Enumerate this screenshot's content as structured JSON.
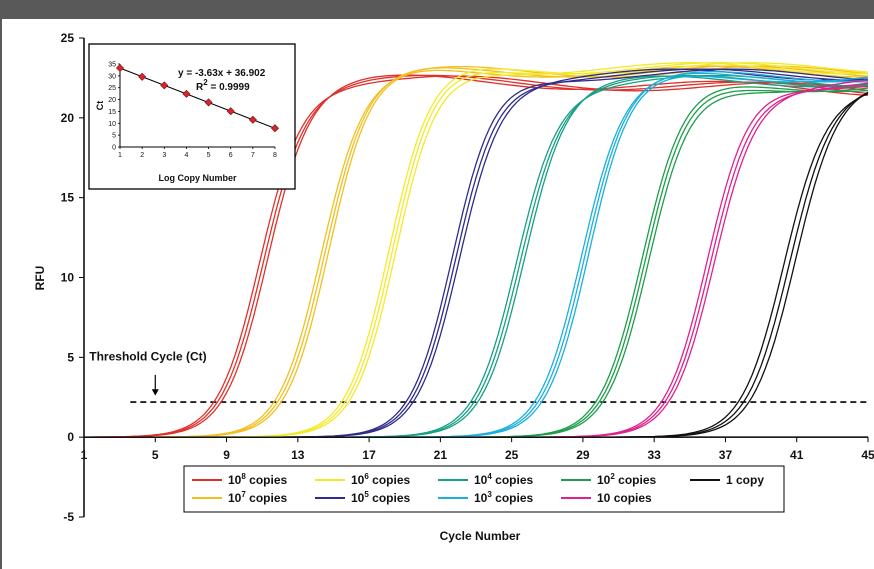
{
  "chart_data": [
    {
      "type": "line",
      "xlabel": "Cycle Number",
      "ylabel": "RFU",
      "xlim": [
        1,
        45
      ],
      "ylim": [
        -5,
        25
      ],
      "x_ticks": [
        1,
        5,
        9,
        13,
        17,
        21,
        25,
        29,
        33,
        37,
        41,
        45
      ],
      "y_ticks": [
        -5,
        0,
        5,
        10,
        15,
        20,
        25
      ],
      "threshold": {
        "label": "Threshold Cycle (Ct)",
        "value": 2.2,
        "arrow_label_x": 5
      },
      "legend_placement": "bottom-center",
      "series": [
        {
          "name_base": "10",
          "name_exp": "8",
          "name_suffix": " copies",
          "color": "#e0302a",
          "midpoints": [
            10.9,
            11.1,
            11.3
          ],
          "plateau": 22.4
        },
        {
          "name_base": "10",
          "name_exp": "7",
          "name_suffix": " copies",
          "color": "#f0c020",
          "midpoints": [
            14.3,
            14.5,
            14.7
          ],
          "plateau": 22.9
        },
        {
          "name_base": "10",
          "name_exp": "6",
          "name_suffix": " copies",
          "color": "#f2ea28",
          "midpoints": [
            18.1,
            18.3,
            18.5
          ],
          "plateau": 23.1
        },
        {
          "name_base": "10",
          "name_exp": "5",
          "name_suffix": " copies",
          "color": "#2f2c8a",
          "midpoints": [
            21.7,
            21.9,
            22.1
          ],
          "plateau": 22.7
        },
        {
          "name_base": "10",
          "name_exp": "4",
          "name_suffix": " copies",
          "color": "#16a085",
          "midpoints": [
            25.3,
            25.5,
            25.7
          ],
          "plateau": 22.3
        },
        {
          "name_base": "10",
          "name_exp": "3",
          "name_suffix": " copies",
          "color": "#1ab0dd",
          "midpoints": [
            28.9,
            29.1,
            29.3
          ],
          "plateau": 22.6
        },
        {
          "name_base": "10",
          "name_exp": "2",
          "name_suffix": " copies",
          "color": "#1c9e4a",
          "midpoints": [
            32.3,
            32.5,
            32.7
          ],
          "plateau": 22.0
        },
        {
          "name_base": "10",
          "name_exp": "",
          "name_suffix": " copies",
          "color": "#e0208c",
          "midpoints": [
            36.0,
            36.2,
            36.4
          ],
          "plateau": 22.2
        },
        {
          "name_base": "1 copy",
          "name_exp": "",
          "name_suffix": "",
          "color": "#111111",
          "midpoints": [
            40.3,
            40.6,
            40.9
          ],
          "plateau": 22.0
        }
      ]
    },
    {
      "type": "scatter",
      "xlabel": "Log Copy Number",
      "ylabel": "Ct",
      "xlim": [
        1,
        8
      ],
      "ylim": [
        0,
        35
      ],
      "x_ticks": [
        1,
        2,
        3,
        4,
        5,
        6,
        7,
        8
      ],
      "y_ticks": [
        0,
        5,
        10,
        15,
        20,
        25,
        30,
        35
      ],
      "points": [
        {
          "x": 1,
          "y": 33.3
        },
        {
          "x": 2,
          "y": 29.6
        },
        {
          "x": 3,
          "y": 26.0
        },
        {
          "x": 4,
          "y": 22.4
        },
        {
          "x": 5,
          "y": 18.8
        },
        {
          "x": 6,
          "y": 15.1
        },
        {
          "x": 7,
          "y": 11.5
        },
        {
          "x": 8,
          "y": 7.9
        }
      ],
      "fit": {
        "slope": -3.63,
        "intercept": 36.902
      },
      "equation": "y = -3.63x + 36.902",
      "r2_label_base": "R",
      "r2_label_exp": "2",
      "r2_label_value": " = 0.9999",
      "point_color": "#d9242b"
    }
  ]
}
